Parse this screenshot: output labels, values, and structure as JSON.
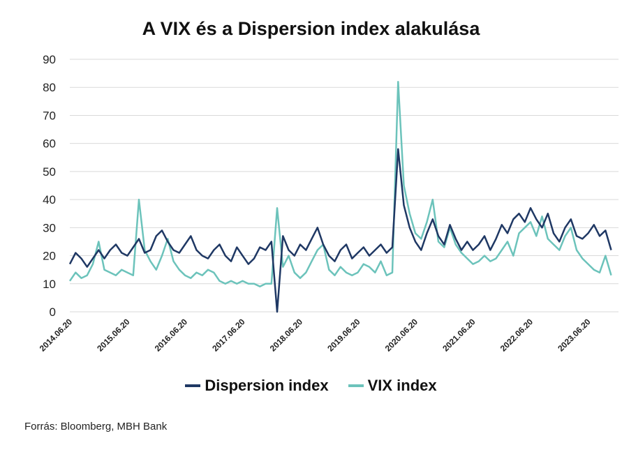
{
  "chart_data": {
    "type": "line",
    "title": "A VIX és a Dispersion index alakulása",
    "xlabel": "",
    "ylabel": "",
    "ylim": [
      0,
      90
    ],
    "yticks": [
      0,
      10,
      20,
      30,
      40,
      50,
      60,
      70,
      80,
      90
    ],
    "xlim": [
      2014.47,
      2023.9
    ],
    "xticks": [
      {
        "v": 2014.47,
        "label": "2014.06.20"
      },
      {
        "v": 2015.47,
        "label": "2015.06.20"
      },
      {
        "v": 2016.47,
        "label": "2016.06.20"
      },
      {
        "v": 2017.47,
        "label": "2017.06.20"
      },
      {
        "v": 2018.47,
        "label": "2018.06.20"
      },
      {
        "v": 2019.47,
        "label": "2019.06.20"
      },
      {
        "v": 2020.47,
        "label": "2020.06.20"
      },
      {
        "v": 2021.47,
        "label": "2021.06.20"
      },
      {
        "v": 2022.47,
        "label": "2022.06.20"
      },
      {
        "v": 2023.47,
        "label": "2023.06.20"
      }
    ],
    "x_start": 2014.47,
    "x_step": 0.1,
    "grid": true,
    "legend_position": "bottom",
    "series": [
      {
        "name": "Dispersion index",
        "color": "#1f3864",
        "values": [
          17,
          21,
          19,
          16,
          19,
          22,
          19,
          22,
          24,
          21,
          20,
          23,
          26,
          21,
          22,
          27,
          29,
          25,
          22,
          21,
          24,
          27,
          22,
          20,
          19,
          22,
          24,
          20,
          18,
          23,
          20,
          17,
          19,
          23,
          22,
          25,
          0,
          27,
          22,
          20,
          24,
          22,
          26,
          30,
          24,
          20,
          18,
          22,
          24,
          19,
          21,
          23,
          20,
          22,
          24,
          21,
          23,
          58,
          38,
          30,
          25,
          22,
          28,
          33,
          27,
          24,
          31,
          26,
          22,
          25,
          22,
          24,
          27,
          22,
          26,
          31,
          28,
          33,
          35,
          32,
          37,
          33,
          30,
          35,
          28,
          25,
          30,
          33,
          27,
          26,
          28,
          31,
          27,
          29,
          22
        ]
      },
      {
        "name": "VIX index",
        "color": "#6cc3bb",
        "values": [
          11,
          14,
          12,
          13,
          17,
          25,
          15,
          14,
          13,
          15,
          14,
          13,
          40,
          22,
          18,
          15,
          20,
          26,
          18,
          15,
          13,
          12,
          14,
          13,
          15,
          14,
          11,
          10,
          11,
          10,
          11,
          10,
          10,
          9,
          10,
          10,
          37,
          16,
          20,
          14,
          12,
          14,
          18,
          22,
          24,
          15,
          13,
          16,
          14,
          13,
          14,
          17,
          16,
          14,
          18,
          13,
          14,
          82,
          45,
          35,
          28,
          26,
          32,
          40,
          25,
          23,
          30,
          24,
          21,
          19,
          17,
          18,
          20,
          18,
          19,
          22,
          25,
          20,
          28,
          30,
          32,
          27,
          34,
          26,
          24,
          22,
          27,
          30,
          22,
          19,
          17,
          15,
          14,
          20,
          13
        ]
      }
    ]
  },
  "source": "Forrás: Bloomberg, MBH Bank"
}
